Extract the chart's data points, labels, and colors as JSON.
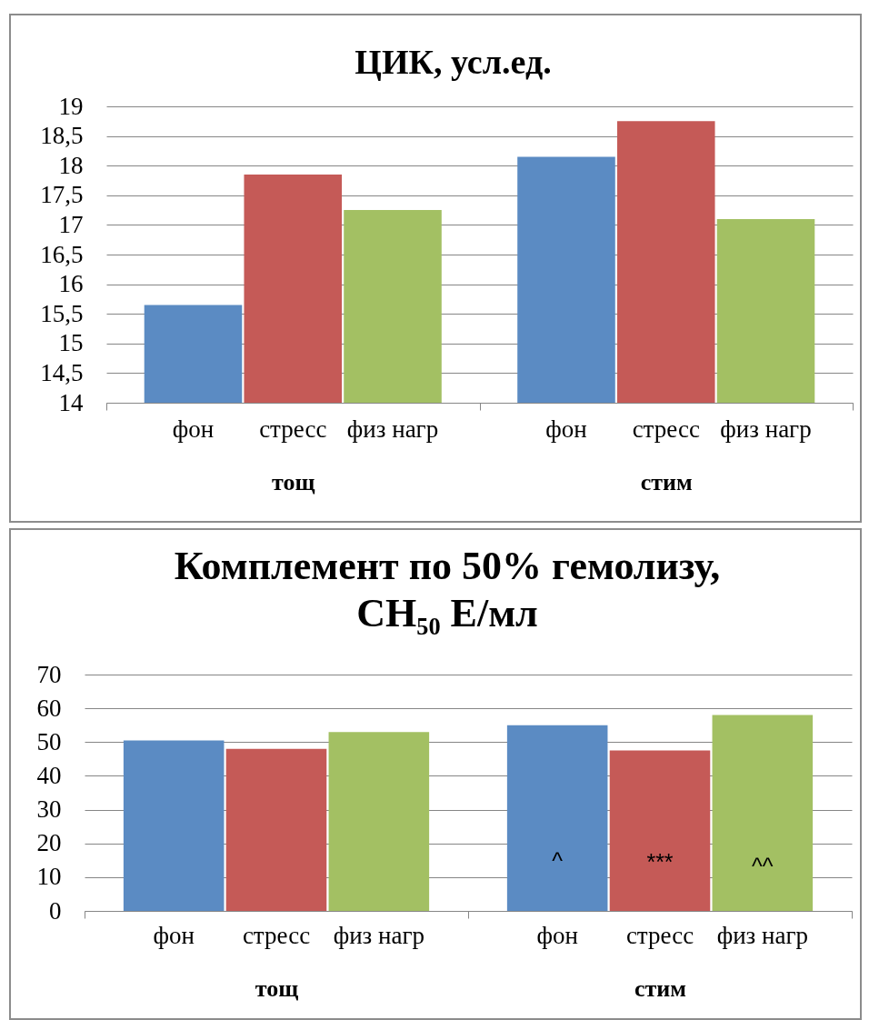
{
  "chart_data": [
    {
      "type": "bar",
      "title": "ЦИК, усл.ед.",
      "categories": [
        "тощ",
        "стим"
      ],
      "series": [
        {
          "name": "фон",
          "color": "#5b8bc3",
          "values": [
            15.65,
            18.15
          ]
        },
        {
          "name": "стресс",
          "color": "#c55a57",
          "values": [
            17.85,
            18.75
          ]
        },
        {
          "name": "физ нагр",
          "color": "#a3c063",
          "values": [
            17.25,
            17.1
          ]
        }
      ],
      "ylim": [
        14,
        19
      ],
      "yticks": [
        14,
        {
          "value": 14.5,
          "label": "14,5"
        },
        15,
        {
          "value": 15.5,
          "label": "15,5"
        },
        16,
        {
          "value": 16.5,
          "label": "16,5"
        },
        17,
        {
          "value": 17.5,
          "label": "17,5"
        },
        18,
        {
          "value": 18.5,
          "label": "18,5"
        },
        19
      ],
      "grid": "y"
    },
    {
      "type": "bar",
      "title": "Комплемент по 50% гемолизу,\nCH₅₀ Е/мл",
      "categories": [
        "тощ",
        "стим"
      ],
      "series": [
        {
          "name": "фон",
          "color": "#5b8bc3",
          "values": [
            50.5,
            55
          ]
        },
        {
          "name": "стресс",
          "color": "#c55a57",
          "values": [
            48,
            47.5
          ]
        },
        {
          "name": "физ нагр",
          "color": "#a3c063",
          "values": [
            53,
            58
          ]
        }
      ],
      "ylim": [
        0,
        70
      ],
      "yticks": [
        0,
        10,
        20,
        30,
        40,
        50,
        60,
        70
      ],
      "grid": "y",
      "annotations": [
        "^",
        "***",
        "^^"
      ]
    }
  ]
}
